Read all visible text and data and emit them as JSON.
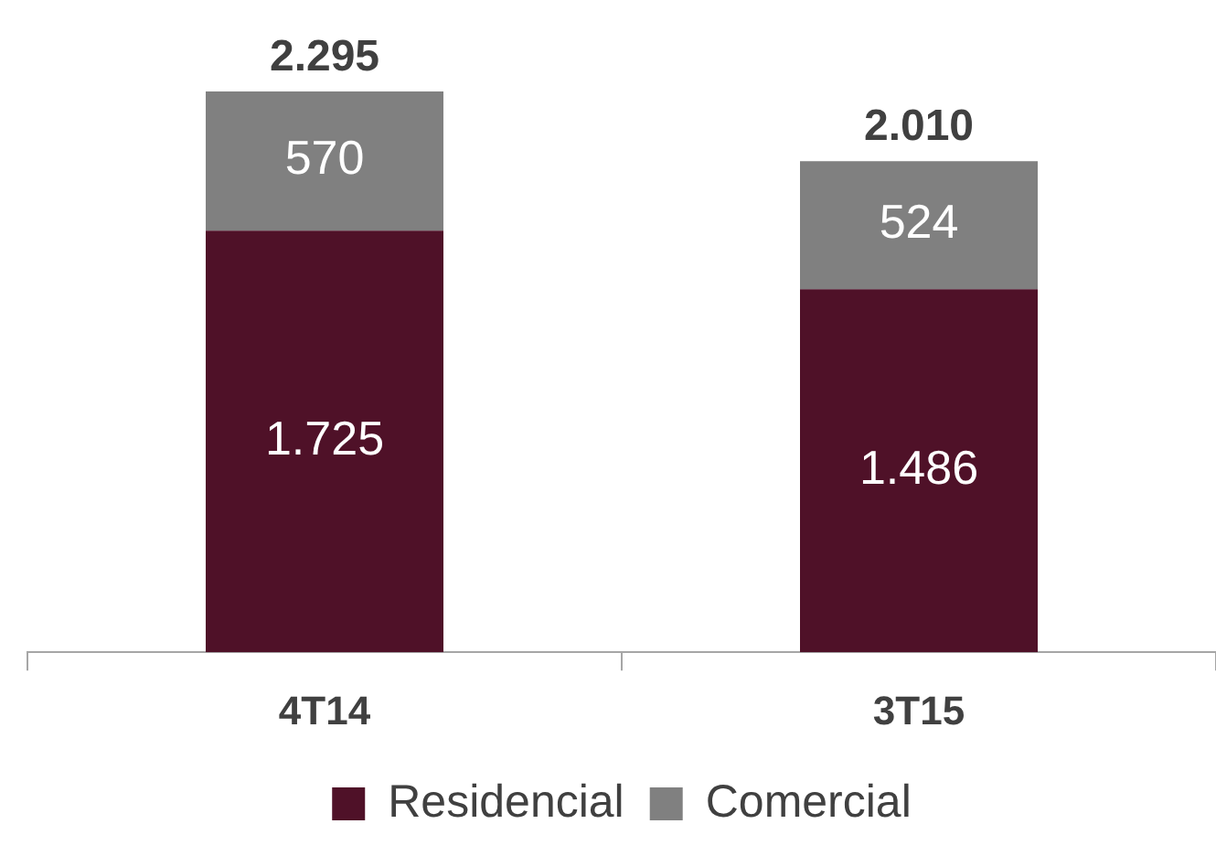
{
  "chart_data": {
    "type": "bar",
    "stacked": true,
    "categories": [
      "4T14",
      "3T15"
    ],
    "series": [
      {
        "name": "Residencial",
        "color": "#4f1128",
        "values": [
          1725,
          1486
        ],
        "value_labels": [
          "1.725",
          "1.486"
        ]
      },
      {
        "name": "Comercial",
        "color": "#808080",
        "values": [
          570,
          524
        ],
        "value_labels": [
          "570",
          "524"
        ]
      }
    ],
    "totals": [
      "2.295",
      "2.010"
    ],
    "legend": "bottom",
    "grid": false
  }
}
